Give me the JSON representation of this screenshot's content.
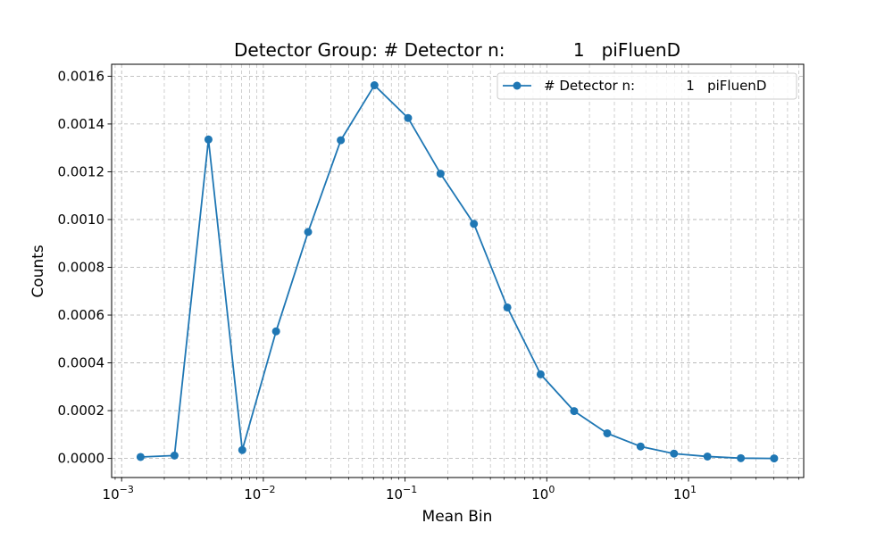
{
  "chart_data": {
    "type": "line",
    "title": "Detector Group: # Detector n:            1   piFluenD",
    "xlabel": "Mean Bin",
    "ylabel": "Counts",
    "xscale": "log",
    "xlim": [
      0.00085,
      65
    ],
    "ylim": [
      -8e-05,
      0.00165
    ],
    "grid": true,
    "grid_minor_x": true,
    "legend_position": "upper right",
    "x_ticks": [
      {
        "value": 0.001,
        "base": "10",
        "exp": "−3"
      },
      {
        "value": 0.01,
        "base": "10",
        "exp": "−2"
      },
      {
        "value": 0.1,
        "base": "10",
        "exp": "−1"
      },
      {
        "value": 1,
        "base": "10",
        "exp": "0"
      },
      {
        "value": 10,
        "base": "10",
        "exp": "1"
      }
    ],
    "y_ticks": [
      {
        "value": 0.0,
        "label": "0.0000"
      },
      {
        "value": 0.0002,
        "label": "0.0002"
      },
      {
        "value": 0.0004,
        "label": "0.0004"
      },
      {
        "value": 0.0006,
        "label": "0.0006"
      },
      {
        "value": 0.0008,
        "label": "0.0008"
      },
      {
        "value": 0.001,
        "label": "0.0010"
      },
      {
        "value": 0.0012,
        "label": "0.0012"
      },
      {
        "value": 0.0014,
        "label": "0.0014"
      },
      {
        "value": 0.0016,
        "label": "0.0016"
      }
    ],
    "series": [
      {
        "name": "# Detector n:            1   piFluenD",
        "color": "#1f77b4",
        "marker": "circle",
        "x": [
          0.00136,
          0.00236,
          0.0041,
          0.0071,
          0.0123,
          0.0207,
          0.0352,
          0.0608,
          0.105,
          0.178,
          0.306,
          0.527,
          0.905,
          1.56,
          2.67,
          4.59,
          7.9,
          13.6,
          23.4,
          40.2
        ],
        "y": [
          6e-06,
          1.2e-05,
          0.001335,
          3.5e-05,
          0.000532,
          0.000948,
          0.001332,
          0.001562,
          0.001425,
          0.001192,
          0.000982,
          0.000632,
          0.000352,
          0.000198,
          0.000105,
          5e-05,
          2e-05,
          8e-06,
          1e-06,
          0.0
        ]
      }
    ]
  }
}
